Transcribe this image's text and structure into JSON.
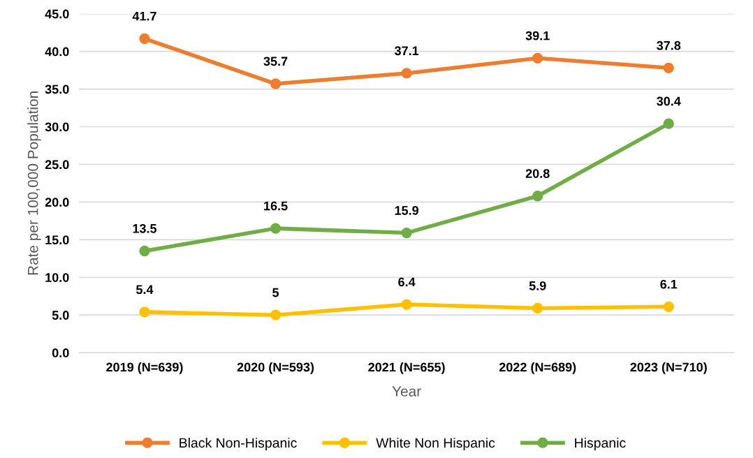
{
  "chart_data": {
    "type": "line",
    "xlabel": "Year",
    "ylabel": "Rate per 100,000 Population",
    "categories": [
      "2019 (N=639)",
      "2020 (N=593)",
      "2021 (N=655)",
      "2022 (N=689)",
      "2023 (N=710)"
    ],
    "series": [
      {
        "name": "Black Non-Hispanic",
        "color": "#ed7d31",
        "values": [
          41.7,
          35.7,
          37.1,
          39.1,
          37.8
        ]
      },
      {
        "name": "White Non Hispanic",
        "color": "#ffc000",
        "values": [
          5.4,
          5,
          6.4,
          5.9,
          6.1
        ]
      },
      {
        "name": "Hispanic",
        "color": "#70ad47",
        "values": [
          13.5,
          16.5,
          15.9,
          20.8,
          30.4
        ]
      }
    ],
    "ylim": [
      0,
      45
    ],
    "yticks": [
      {
        "value": 0,
        "label": "0.0"
      },
      {
        "value": 5,
        "label": "5.0"
      },
      {
        "value": 10,
        "label": "10.0"
      },
      {
        "value": 15,
        "label": "15.0"
      },
      {
        "value": 20,
        "label": "20.0"
      },
      {
        "value": 25,
        "label": "25.0"
      },
      {
        "value": 30,
        "label": "30.0"
      },
      {
        "value": 35,
        "label": "35.0"
      },
      {
        "value": 40,
        "label": "40.0"
      },
      {
        "value": 45,
        "label": "45.0"
      }
    ],
    "grid": "y",
    "legend": "bottom",
    "marker": "circle",
    "line_style": "solid",
    "data_labels": true
  }
}
